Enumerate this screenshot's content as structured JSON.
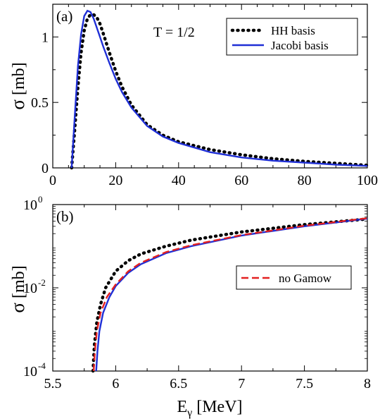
{
  "chart_data": [
    {
      "panel_label": "(a)",
      "type": "line",
      "annotation": "T = 1/2",
      "xlabel": "",
      "ylabel_main": "σ",
      "ylabel_unit": "[mb]",
      "xlim": [
        0,
        100
      ],
      "ylim": [
        0,
        1.25
      ],
      "xticks": [
        0,
        20,
        40,
        60,
        80,
        100
      ],
      "yticks": [
        0,
        0.5,
        1
      ],
      "ytick_labels": [
        "0",
        "0.5",
        "1"
      ],
      "legend_position": "top-right",
      "series": [
        {
          "name": "HH basis",
          "color": "#000000",
          "style": "dotted",
          "x": [
            6.0,
            7,
            8,
            9,
            10,
            11,
            12,
            13,
            14,
            15,
            16,
            18,
            20,
            22,
            25,
            30,
            35,
            40,
            50,
            60,
            70,
            80,
            90,
            100
          ],
          "y": [
            0.0,
            0.3,
            0.62,
            0.88,
            1.05,
            1.14,
            1.17,
            1.17,
            1.15,
            1.1,
            1.03,
            0.88,
            0.74,
            0.62,
            0.48,
            0.33,
            0.25,
            0.2,
            0.14,
            0.1,
            0.07,
            0.05,
            0.035,
            0.02
          ]
        },
        {
          "name": "Jacobi basis",
          "color": "#1f2fd6",
          "style": "solid",
          "x": [
            6.0,
            7,
            8,
            9,
            10,
            11,
            12,
            13,
            14,
            15,
            16,
            18,
            20,
            22,
            25,
            30,
            35,
            40,
            50,
            60,
            70,
            80,
            90,
            100
          ],
          "y": [
            0.0,
            0.4,
            0.78,
            1.02,
            1.16,
            1.2,
            1.19,
            1.14,
            1.07,
            1.0,
            0.93,
            0.8,
            0.68,
            0.58,
            0.46,
            0.32,
            0.24,
            0.19,
            0.12,
            0.08,
            0.055,
            0.04,
            0.025,
            0.015
          ]
        }
      ]
    },
    {
      "panel_label": "(b)",
      "type": "line",
      "xlabel_main": "E",
      "xlabel_sub": "γ",
      "xlabel_unit": "[MeV]",
      "ylabel_main": "σ",
      "ylabel_unit": "[mb]",
      "xlim": [
        5.5,
        8
      ],
      "ylim": [
        0.0001,
        1
      ],
      "yscale": "log",
      "xticks": [
        5.5,
        6,
        6.5,
        7,
        7.5,
        8
      ],
      "ytick_decades": [
        {
          "value": 0.0001,
          "base": "10",
          "exp": "-4"
        },
        {
          "value": 0.01,
          "base": "10",
          "exp": "-2"
        },
        {
          "value": 1,
          "base": "10",
          "exp": "0"
        }
      ],
      "legend_position": "center-right",
      "series": [
        {
          "name": "",
          "color": "#000000",
          "style": "dotted",
          "x": [
            5.82,
            5.83,
            5.85,
            5.88,
            5.92,
            6.0,
            6.1,
            6.2,
            6.4,
            6.6,
            7.0,
            7.5,
            8.0
          ],
          "y": [
            0.0001,
            0.0004,
            0.0015,
            0.004,
            0.01,
            0.025,
            0.045,
            0.065,
            0.1,
            0.14,
            0.22,
            0.33,
            0.45
          ]
        },
        {
          "name": "",
          "color": "#1f2fd6",
          "style": "solid",
          "x": [
            5.845,
            5.855,
            5.87,
            5.9,
            5.95,
            6.0,
            6.1,
            6.2,
            6.4,
            6.6,
            7.0,
            7.5,
            8.0
          ],
          "y": [
            0.0001,
            0.0003,
            0.0009,
            0.0025,
            0.006,
            0.011,
            0.023,
            0.037,
            0.068,
            0.1,
            0.18,
            0.3,
            0.46
          ]
        },
        {
          "name": "no Gamow",
          "color": "#e32020",
          "style": "dashed",
          "x": [
            5.825,
            5.835,
            5.85,
            5.88,
            5.93,
            6.0,
            6.1,
            6.2,
            6.4,
            6.6,
            7.0,
            7.5,
            8.0
          ],
          "y": [
            0.0001,
            0.0003,
            0.0009,
            0.0025,
            0.006,
            0.012,
            0.025,
            0.04,
            0.072,
            0.105,
            0.185,
            0.31,
            0.47
          ]
        }
      ]
    }
  ]
}
